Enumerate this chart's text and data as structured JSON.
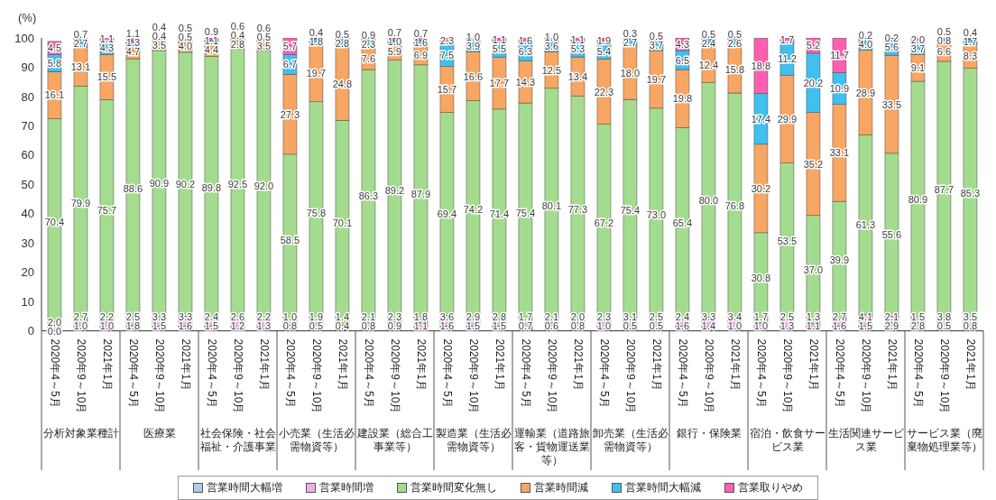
{
  "chart_data": {
    "type": "bar",
    "stacked": true,
    "ylabel": "(%)",
    "ylim": [
      0,
      100
    ],
    "yticks": [
      0,
      10,
      20,
      30,
      40,
      50,
      60,
      70,
      80,
      90,
      100
    ],
    "legend": "bottom",
    "categories": [
      "2020年4～5月",
      "2020年9～10月",
      "2021年1月",
      "2020年4～5月",
      "2020年9～10月",
      "2021年1月",
      "2020年4～5月",
      "2020年9～10月",
      "2021年1月",
      "2020年4～5月",
      "2020年9～10月",
      "2021年1月",
      "2020年4～5月",
      "2020年9～10月",
      "2021年1月",
      "2020年4～5月",
      "2020年9～10月",
      "2021年1月",
      "2020年4～5月",
      "2020年9～10月",
      "2021年1月",
      "2020年4～5月",
      "2020年9～10月",
      "2021年1月",
      "2020年4～5月",
      "2020年9～10月",
      "2021年1月",
      "2020年4～5月",
      "2020年9～10月",
      "2021年1月",
      "2020年4～5月",
      "2020年9～10月",
      "2021年1月",
      "2020年4～5月",
      "2020年9～10月",
      "2021年1月"
    ],
    "annotations": [
      "分析対象業種計",
      "医療業",
      "社会保険・社会福祉・介護事業",
      "小売業（生活必需物資等）",
      "建設業（総合工事業等）",
      "製造業（生活必需物資等）",
      "運輸業（道路旅客・貨物運送業等）",
      "卸売業（生活必需物資等）",
      "銀行・保険業",
      "宿泊・飲食サービス業",
      "生活関連サービス業",
      "サービス業（廃棄物処理業等）"
    ],
    "series": [
      {
        "name": "営業時間大幅増",
        "color": "#a9cdea",
        "values": [
          0.0,
          1.0,
          1.0,
          1.8,
          1.5,
          1.6,
          1.5,
          1.2,
          1.3,
          0.8,
          0.5,
          0.4,
          0.8,
          0.9,
          1.1,
          1.6,
          1.5,
          1.5,
          0.7,
          0.6,
          0.8,
          1.0,
          0.5,
          0.5,
          1.6,
          1.4,
          1.0,
          1.0,
          1.3,
          1.1,
          1.6,
          1.5,
          2.9,
          2.8,
          0.5,
          0.8
        ],
        "value_labels": [
          "0.0",
          "1.0",
          "1.0",
          "1.8",
          "1.5",
          "1.6",
          "1.5",
          "1.2",
          "1.3",
          "0.8",
          "0.5",
          "0.4",
          "0.8",
          "0.9",
          "1.1",
          "1.6",
          "1.5",
          "1.5",
          "0.7",
          "0.6",
          "0.8",
          "1.0",
          "0.5",
          "0.5",
          "1.6",
          "1.4",
          "1.0",
          "1.0",
          "1.3",
          "1.1",
          "1.6",
          "1.5",
          "2.9",
          "2.8",
          "0.5",
          "0.8"
        ]
      },
      {
        "name": "営業時間増",
        "color": "#eeb0ee",
        "values": [
          2.0,
          2.7,
          2.2,
          2.5,
          3.3,
          3.3,
          2.4,
          2.6,
          2.2,
          1.0,
          1.9,
          1.4,
          2.1,
          2.3,
          1.8,
          3.6,
          2.9,
          2.8,
          1.7,
          2.1,
          2.0,
          2.3,
          3.1,
          2.5,
          2.4,
          3.3,
          3.4,
          1.7,
          2.5,
          1.3,
          2.7,
          4.1,
          2.1,
          1.5,
          3.8,
          3.5
        ],
        "value_labels": [
          "2.0",
          "2.7",
          "2.2",
          "2.5",
          "3.3",
          "3.3",
          "2.4",
          "2.6",
          "2.2",
          "1.0",
          "1.9",
          "1.4",
          "2.1",
          "2.3",
          "1.8",
          "3.6",
          "2.9",
          "2.8",
          "1.7",
          "2.1",
          "2.0",
          "2.3",
          "3.1",
          "2.5",
          "2.4",
          "3.3",
          "3.4",
          "1.7",
          "2.5",
          "1.3",
          "2.7",
          "4.1",
          "2.1",
          "1.5",
          "3.8",
          "3.5"
        ]
      },
      {
        "name": "営業時間変化無し",
        "color": "#a4dc8f",
        "values": [
          70.4,
          79.9,
          75.7,
          88.6,
          90.9,
          90.2,
          89.8,
          92.5,
          92.0,
          58.5,
          75.8,
          70.1,
          86.3,
          89.2,
          87.9,
          69.4,
          74.2,
          71.4,
          75.4,
          80.1,
          77.3,
          67.2,
          75.4,
          73.0,
          65.4,
          80.0,
          76.8,
          30.8,
          53.5,
          37.0,
          39.9,
          61.3,
          55.6,
          80.9,
          87.7,
          85.3
        ],
        "value_labels": [
          "70.4",
          "79.9",
          "75.7",
          "88.6",
          "90.9",
          "90.2",
          "89.8",
          "92.5",
          "92.0",
          "58.5",
          "75.8",
          "70.1",
          "86.3",
          "89.2",
          "87.9",
          "69.4",
          "74.2",
          "71.4",
          "75.4",
          "80.1",
          "77.3",
          "67.2",
          "75.4",
          "73.0",
          "65.4",
          "80.0",
          "76.8",
          "30.8",
          "53.5",
          "37.0",
          "39.9",
          "61.3",
          "55.6",
          "80.9",
          "87.7",
          "85.3"
        ]
      },
      {
        "name": "営業時間減",
        "color": "#f7a663",
        "values": [
          16.1,
          13.1,
          15.5,
          4.7,
          3.5,
          4.0,
          4.4,
          2.8,
          3.5,
          27.3,
          19.7,
          24.8,
          7.6,
          5.9,
          6.9,
          15.7,
          16.6,
          17.7,
          14.3,
          12.5,
          13.4,
          22.3,
          18.0,
          19.7,
          19.8,
          12.4,
          15.8,
          30.2,
          29.9,
          35.2,
          33.1,
          28.9,
          33.5,
          9.1,
          6.6,
          8.3
        ],
        "value_labels": [
          "16.1",
          "13.1",
          "15.5",
          "4.7",
          "3.5",
          "4.0",
          "4.4",
          "2.8",
          "3.5",
          "27.3",
          "19.7",
          "24.8",
          "7.6",
          "5.9",
          "6.9",
          "15.7",
          "16.6",
          "17.7",
          "14.3",
          "12.5",
          "13.4",
          "22.3",
          "18.0",
          "19.7",
          "19.8",
          "12.4",
          "15.8",
          "30.2",
          "29.9",
          "35.2",
          "33.1",
          "28.9",
          "33.5",
          "9.1",
          "6.6",
          "8.3"
        ]
      },
      {
        "name": "営業時間大幅減",
        "color": "#3fc0ef",
        "values": [
          5.8,
          2.7,
          4.3,
          1.3,
          0.4,
          0.5,
          1.1,
          0.4,
          0.5,
          6.7,
          1.8,
          2.8,
          2.3,
          1.0,
          1.6,
          7.5,
          3.9,
          5.5,
          6.3,
          3.6,
          5.3,
          5.4,
          2.7,
          3.7,
          6.5,
          2.4,
          2.6,
          17.4,
          11.2,
          20.2,
          10.9,
          4.0,
          5.6,
          3.7,
          0.8,
          1.7
        ],
        "value_labels": [
          "5.8",
          "2.7",
          "4.3",
          "1.3",
          "0.4",
          "0.5",
          "1.1",
          "0.4",
          "0.5",
          "6.7",
          "1.8",
          "2.8",
          "2.3",
          "1.0",
          "1.6",
          "7.5",
          "3.9",
          "5.5",
          "6.3",
          "3.6",
          "5.3",
          "5.4",
          "2.7",
          "3.7",
          "6.5",
          "2.4",
          "2.6",
          "17.4",
          "11.2",
          "20.2",
          "10.9",
          "4.0",
          "5.6",
          "3.7",
          "0.8",
          "1.7"
        ]
      },
      {
        "name": "営業取りやめ",
        "color": "#ff5fb0",
        "values": [
          4.5,
          0.7,
          1.1,
          1.1,
          0.4,
          0.5,
          0.9,
          0.6,
          0.6,
          5.7,
          0.4,
          0.5,
          0.9,
          0.7,
          0.7,
          2.3,
          1.0,
          1.1,
          1.6,
          1.0,
          1.1,
          1.9,
          0.3,
          0.5,
          4.3,
          0.5,
          0.5,
          18.8,
          1.7,
          5.2,
          11.7,
          0.2,
          0.2,
          2.0,
          0.5,
          0.4
        ],
        "value_labels": [
          "4.5",
          "0.7",
          "1.1",
          "1.1",
          "0.4",
          "0.5",
          "0.9",
          "0.6",
          "0.6",
          "5.7",
          "0.4",
          "0.5",
          "0.9",
          "0.7",
          "0.7",
          "2.3",
          "1.0",
          "1.1",
          "1.6",
          "1.0",
          "1.1",
          "1.9",
          "0.3",
          "0.5",
          "4.3",
          "0.5",
          "0.5",
          "18.8",
          "1.7",
          "5.2",
          "11.7",
          "0.2",
          "0.2",
          "2.0",
          "0.5",
          "0.4"
        ]
      }
    ]
  }
}
